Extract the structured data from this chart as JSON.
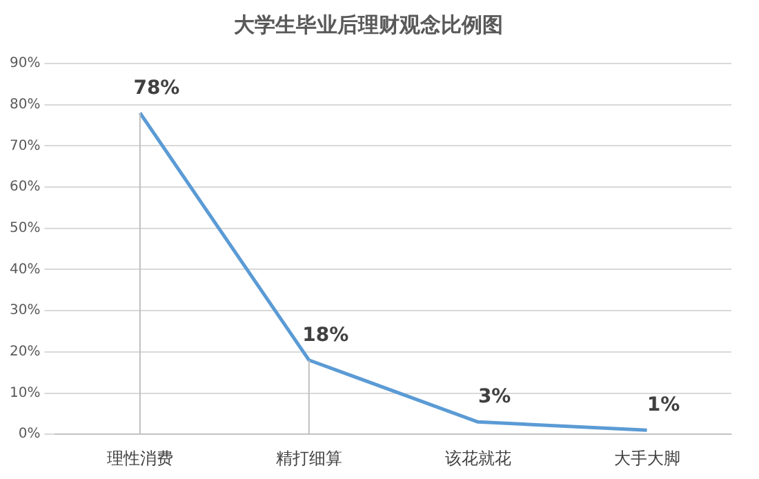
{
  "chart_data": {
    "type": "line",
    "title": "大学生毕业后理财观念比例图",
    "categories": [
      "理性消费",
      "精打细算",
      "该花就花",
      "大手大脚"
    ],
    "values": [
      78,
      18,
      3,
      1
    ],
    "errors": [
      [
        0,
        78
      ],
      [
        0,
        18
      ],
      null,
      null
    ],
    "value_labels": [
      "78%",
      "18%",
      "3%",
      "1%"
    ],
    "color": "#5b9bd5",
    "ylim": [
      0,
      90
    ],
    "yticks": [
      {
        "value": 0,
        "label": "0%"
      },
      {
        "value": 10,
        "label": "10%"
      },
      {
        "value": 20,
        "label": "20%"
      },
      {
        "value": 30,
        "label": "30%"
      },
      {
        "value": 40,
        "label": "40%"
      },
      {
        "value": 50,
        "label": "50%"
      },
      {
        "value": 60,
        "label": "60%"
      },
      {
        "value": 70,
        "label": "70%"
      },
      {
        "value": 80,
        "label": "80%"
      },
      {
        "value": 90,
        "label": "90%"
      }
    ],
    "grid": "y",
    "marker": "none",
    "line_style": "solid"
  }
}
